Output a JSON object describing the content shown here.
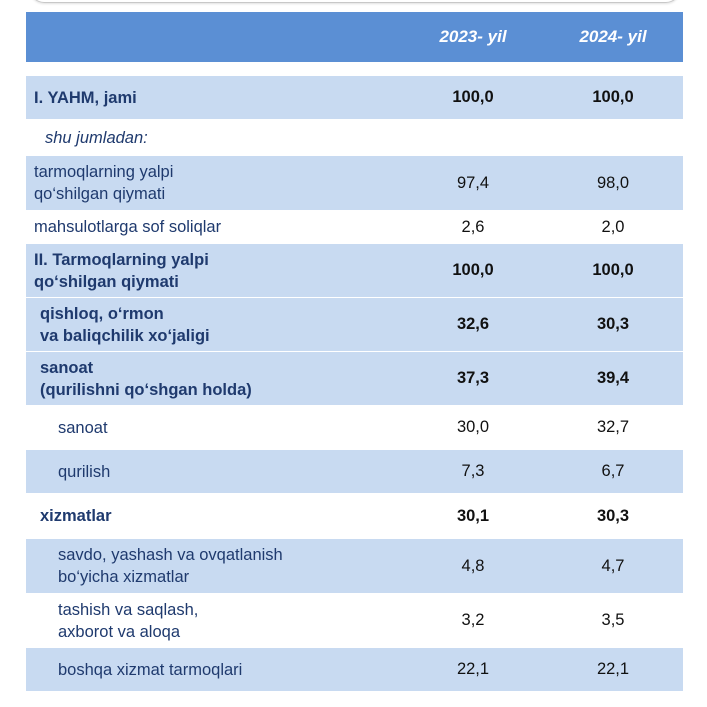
{
  "header": {
    "col1": "2023- yil",
    "col2": "2024- yil"
  },
  "rows": [
    {
      "label": "I. YAHM, jami",
      "v1": "100,0",
      "v2": "100,0"
    },
    {
      "label": "shu jumladan:"
    },
    {
      "label": "tarmoqlarning yalpi\nqo‘shilgan qiymati",
      "v1": "97,4",
      "v2": "98,0"
    },
    {
      "label": "mahsulotlarga sof soliqlar",
      "v1": "2,6",
      "v2": "2,0"
    },
    {
      "label": "II. Tarmoqlarning yalpi\nqo‘shilgan qiymati",
      "v1": "100,0",
      "v2": "100,0"
    },
    {
      "label": "qishloq, o‘rmon\nva baliqchilik xo‘jaligi",
      "v1": "32,6",
      "v2": "30,3"
    },
    {
      "label": "sanoat\n(qurilishni qo‘shgan holda)",
      "v1": "37,3",
      "v2": "39,4"
    },
    {
      "label": "sanoat",
      "v1": "30,0",
      "v2": "32,7"
    },
    {
      "label": "qurilish",
      "v1": "7,3",
      "v2": "6,7"
    },
    {
      "label": "xizmatlar",
      "v1": "30,1",
      "v2": "30,3"
    },
    {
      "label": "savdo, yashash va ovqatlanish\nbo‘yicha xizmatlar",
      "v1": "4,8",
      "v2": "4,7"
    },
    {
      "label": "tashish va saqlash,\naxborot va aloqa",
      "v1": "3,2",
      "v2": "3,5"
    },
    {
      "label": "boshqa xizmat tarmoqlari",
      "v1": "22,1",
      "v2": "22,1"
    }
  ]
}
